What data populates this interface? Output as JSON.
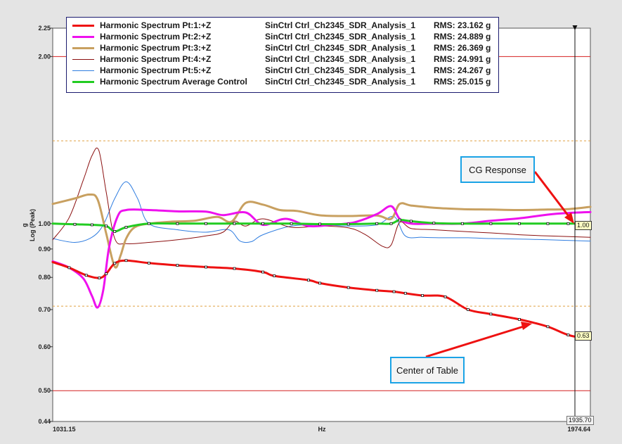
{
  "chart_data": {
    "type": "line",
    "xlabel": "Hz",
    "ylabel_line1": "g",
    "ylabel_line2": "Log (Peak)",
    "xlim": [
      1031.15,
      1974.64
    ],
    "ylim": [
      0.44,
      2.25
    ],
    "y_scale": "log",
    "x_tick_labels": [
      "1031.15",
      "1974.64"
    ],
    "y_ticks": [
      {
        "value": 2.25,
        "label": "2.25"
      },
      {
        "value": 2.0,
        "label": "2.00"
      },
      {
        "value": 1.0,
        "label": "1.00"
      },
      {
        "value": 0.9,
        "label": "0.90"
      },
      {
        "value": 0.8,
        "label": "0.80"
      },
      {
        "value": 0.7,
        "label": "0.70"
      },
      {
        "value": 0.6,
        "label": "0.60"
      },
      {
        "value": 0.5,
        "label": "0.50"
      },
      {
        "value": 0.44,
        "label": "0.44"
      }
    ],
    "limit_lines": [
      {
        "value": 2.0,
        "color": "#d42020",
        "style": "solid"
      },
      {
        "value": 0.5,
        "color": "#d42020",
        "style": "solid"
      },
      {
        "value": 1.41,
        "color": "#e0a040",
        "style": "dotted"
      },
      {
        "value": 0.71,
        "color": "#e0a040",
        "style": "dotted"
      }
    ],
    "series": [
      {
        "name": "Harmonic Spectrum Pt:1:+Z",
        "control": "SinCtrl  Ctrl_Ch2345_SDR_Analysis_1",
        "rms": "RMS: 23.162 g",
        "color": "#ee1111",
        "width": 3,
        "x": [
          1031.15,
          1060,
          1090,
          1113,
          1125,
          1140,
          1160,
          1200,
          1250,
          1300,
          1350,
          1400,
          1420,
          1480,
          1500,
          1550,
          1600,
          1630,
          1650,
          1680,
          1720,
          1760,
          1800,
          1850,
          1900,
          1935.7,
          1974.64
        ],
        "y": [
          0.852,
          0.833,
          0.807,
          0.798,
          0.812,
          0.848,
          0.858,
          0.849,
          0.841,
          0.835,
          0.83,
          0.818,
          0.805,
          0.791,
          0.781,
          0.767,
          0.758,
          0.754,
          0.749,
          0.742,
          0.738,
          0.7,
          0.687,
          0.672,
          0.652,
          0.63,
          0.618
        ]
      },
      {
        "name": "Harmonic Spectrum Pt:2:+Z",
        "control": "SinCtrl  Ctrl_Ch2345_SDR_Analysis_1",
        "rms": "RMS: 24.889 g",
        "color": "#ee11ee",
        "width": 3,
        "x": [
          1031.15,
          1060,
          1085,
          1100,
          1110,
          1120,
          1130,
          1145,
          1160,
          1200,
          1250,
          1300,
          1330,
          1370,
          1400,
          1440,
          1480,
          1520,
          1560,
          1600,
          1625,
          1640,
          1660,
          1700,
          1750,
          1800,
          1850,
          1900,
          1935.7,
          1974.64
        ],
        "y": [
          0.855,
          0.833,
          0.796,
          0.741,
          0.706,
          0.76,
          0.905,
          1.03,
          1.058,
          1.058,
          1.052,
          1.051,
          1.036,
          1.047,
          0.995,
          1.02,
          0.99,
          0.995,
          1.005,
          1.04,
          1.075,
          1.02,
          1.0,
          1.0,
          1.0,
          1.012,
          1.022,
          1.038,
          1.045,
          1.049
        ]
      },
      {
        "name": "Harmonic Spectrum Pt:3:+Z",
        "control": "SinCtrl  Ctrl_Ch2345_SDR_Analysis_1",
        "rms": "RMS: 26.369 g",
        "color": "#c8a060",
        "width": 3,
        "x": [
          1031.15,
          1070,
          1095,
          1110,
          1125,
          1140,
          1150,
          1160,
          1175,
          1200,
          1240,
          1280,
          1320,
          1345,
          1370,
          1400,
          1430,
          1460,
          1500,
          1550,
          1600,
          1625,
          1640,
          1660,
          1700,
          1750,
          1800,
          1850,
          1900,
          1935.7,
          1974.64
        ],
        "y": [
          1.085,
          1.11,
          1.128,
          1.105,
          0.96,
          0.836,
          0.875,
          0.94,
          0.985,
          1.0,
          1.008,
          1.012,
          1.028,
          1.008,
          1.09,
          1.082,
          1.058,
          1.054,
          1.035,
          1.032,
          1.034,
          1.02,
          1.085,
          1.078,
          1.068,
          1.062,
          1.06,
          1.058,
          1.06,
          1.062,
          1.072
        ]
      },
      {
        "name": "Harmonic Spectrum Pt:4:+Z",
        "control": "SinCtrl  Ctrl_Ch2345_SDR_Analysis_1",
        "rms": "RMS: 24.991 g",
        "color": "#8b1010",
        "width": 1,
        "x": [
          1031.15,
          1060,
          1085,
          1100,
          1112,
          1125,
          1140,
          1160,
          1200,
          1250,
          1300,
          1330,
          1350,
          1370,
          1400,
          1450,
          1500,
          1550,
          1580,
          1610,
          1625,
          1640,
          1660,
          1700,
          1750,
          1800,
          1850,
          1900,
          1974.64
        ],
        "y": [
          0.935,
          1.025,
          1.2,
          1.325,
          1.355,
          1.14,
          0.94,
          0.92,
          0.925,
          0.935,
          0.95,
          0.965,
          1.01,
          0.99,
          1.02,
          0.985,
          0.99,
          0.983,
          0.955,
          0.91,
          0.915,
          1.005,
          0.98,
          0.975,
          0.968,
          0.962,
          0.955,
          0.95,
          0.945
        ]
      },
      {
        "name": "Harmonic Spectrum Pt:5:+Z",
        "control": "SinCtrl  Ctrl_Ch2345_SDR_Analysis_1",
        "rms": "RMS: 24.267 g",
        "color": "#2f7de0",
        "width": 1,
        "x": [
          1031.15,
          1070,
          1100,
          1120,
          1140,
          1160,
          1180,
          1200,
          1250,
          1300,
          1340,
          1360,
          1380,
          1400,
          1450,
          1500,
          1550,
          1600,
          1630,
          1650,
          1680,
          1720,
          1760,
          1800,
          1850,
          1900,
          1974.64
        ],
        "y": [
          0.94,
          0.925,
          0.945,
          0.995,
          1.11,
          1.19,
          1.11,
          1.0,
          0.975,
          0.965,
          0.975,
          0.93,
          0.928,
          0.955,
          0.99,
          0.995,
          0.99,
          0.995,
          1.03,
          0.95,
          0.945,
          0.943,
          0.943,
          0.94,
          0.938,
          0.935,
          0.93
        ]
      },
      {
        "name": "Harmonic Spectrum Average Control",
        "control": "SinCtrl  Ctrl_Ch2345_SDR_Analysis_1",
        "rms": "RMS: 25.015 g",
        "color": "#22cc22",
        "width": 3,
        "x": [
          1031.15,
          1070,
          1100,
          1125,
          1140,
          1160,
          1200,
          1250,
          1300,
          1350,
          1400,
          1450,
          1500,
          1550,
          1600,
          1625,
          1640,
          1660,
          1700,
          1750,
          1800,
          1850,
          1900,
          1935.7,
          1974.64
        ],
        "y": [
          1.0,
          0.997,
          0.995,
          0.99,
          0.968,
          0.985,
          1.0,
          1.0,
          1.0,
          1.0,
          1.0,
          1.0,
          0.998,
          0.998,
          1.0,
          1.0,
          1.015,
          1.01,
          1.002,
          1.0,
          1.0,
          1.0,
          1.0,
          1.0,
          1.0
        ]
      }
    ],
    "cursor": {
      "x": 1935.7,
      "x_label": "1935.70",
      "readouts": [
        {
          "value": 1.0,
          "label": "1.00"
        },
        {
          "value": 0.63,
          "label": "0.63"
        }
      ]
    },
    "annotations": [
      {
        "text": "CG Response",
        "target_x": 1935.7,
        "target_y": 1.0
      },
      {
        "text": "Center of Table",
        "target_x": 1900,
        "target_y": 0.67
      }
    ]
  }
}
